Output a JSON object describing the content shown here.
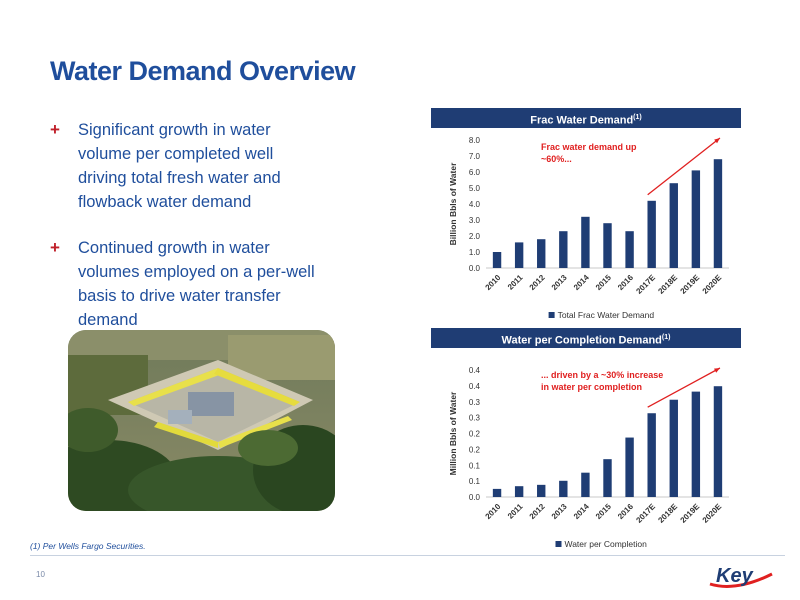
{
  "title": "Water Demand Overview",
  "bullets": [
    "Significant growth in water volume per completed well driving total fresh water and flowback water demand",
    "Continued growth in water volumes employed on a per-well basis to drive water transfer demand"
  ],
  "bullet_marker": "+",
  "footnote": "(1)   Per Wells Fargo Securities.",
  "page_number": "10",
  "logo_text": "Key",
  "colors": {
    "title": "#1f4e9c",
    "header": "#1f3d74",
    "bar": "#1f3d74",
    "accent": "#e02020"
  },
  "chart_data": [
    {
      "type": "bar",
      "header": "Frac Water Demand",
      "header_sup": "(1)",
      "categories": [
        "2010",
        "2011",
        "2012",
        "2013",
        "2014",
        "2015",
        "2016",
        "2017E",
        "2018E",
        "2019E",
        "2020E"
      ],
      "series": [
        {
          "name": "Total Frac Water Demand",
          "values": [
            1.0,
            1.6,
            1.8,
            2.3,
            3.2,
            2.8,
            2.3,
            4.2,
            5.3,
            6.1,
            6.8
          ]
        }
      ],
      "ylabel": "Billion Bbls of Water",
      "ylim": [
        0,
        8
      ],
      "yticks": [
        "0.0",
        "1.0",
        "2.0",
        "3.0",
        "4.0",
        "5.0",
        "6.0",
        "7.0",
        "8.0"
      ],
      "annotation": [
        "Frac water demand up",
        "~60%..."
      ]
    },
    {
      "type": "bar",
      "header": "Water per Completion Demand",
      "header_sup": "(1)",
      "categories": [
        "2010",
        "2011",
        "2012",
        "2013",
        "2014",
        "2015",
        "2016",
        "2017E",
        "2018E",
        "2019E",
        "2020E"
      ],
      "series": [
        {
          "name": "Water per Completion",
          "values": [
            0.03,
            0.04,
            0.045,
            0.06,
            0.09,
            0.14,
            0.22,
            0.31,
            0.36,
            0.39,
            0.41
          ]
        }
      ],
      "ylabel": "Million Bbls of Water",
      "ylim": [
        0,
        0.47
      ],
      "yticks": [
        "0.0",
        "0.1",
        "0.1",
        "0.2",
        "0.2",
        "0.3",
        "0.3",
        "0.4",
        "0.4"
      ],
      "annotation": [
        "... driven by a ~30% increase",
        "in water per completion"
      ]
    }
  ]
}
